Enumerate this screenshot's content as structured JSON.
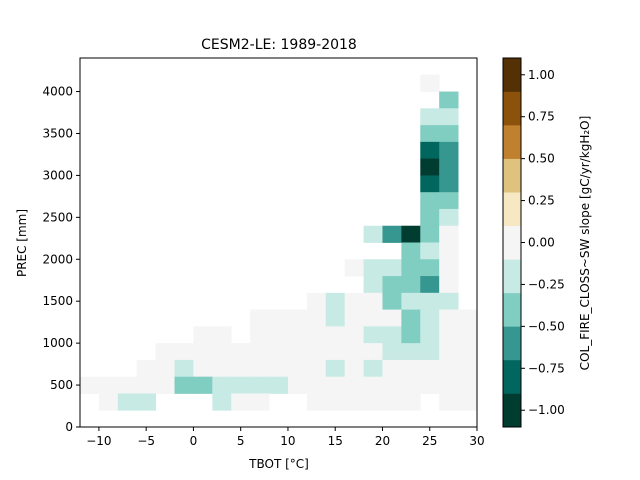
{
  "chart_data": {
    "type": "heatmap",
    "title": "CESM2-LE: 1989-2018",
    "xlabel": "TBOT [°C]",
    "ylabel": "PREC [mm]",
    "xlim": [
      -12,
      30
    ],
    "ylim": [
      0,
      4400
    ],
    "x_ticks": [
      -10,
      -5,
      0,
      5,
      10,
      15,
      20,
      25,
      30
    ],
    "y_ticks": [
      0,
      500,
      1000,
      1500,
      2000,
      2500,
      3000,
      3500,
      4000
    ],
    "bin_width_x": 2,
    "bin_width_y": 200,
    "colorbar": {
      "label": "COL_FIRE_CLOSS~SW slope [gC/yr/kgH₂O]",
      "range": [
        -1.0,
        1.0
      ],
      "ticks": [
        "-1.00",
        "-0.75",
        "-0.50",
        "-0.25",
        "0.00",
        "0.25",
        "0.50",
        "0.75",
        "1.00"
      ],
      "colors": [
        "#003c30",
        "#01665e",
        "#35978f",
        "#80cdc1",
        "#c7eae5",
        "#f5f5f5",
        "#f6e8c3",
        "#dfc27d",
        "#bf812d",
        "#8c510a",
        "#543005"
      ]
    },
    "cells": [
      {
        "x": 24,
        "y": 4000,
        "v": 0.0
      },
      {
        "x": 26,
        "y": 3800,
        "v": -0.35
      },
      {
        "x": 24,
        "y": 3600,
        "v": -0.2
      },
      {
        "x": 26,
        "y": 3600,
        "v": -0.2
      },
      {
        "x": 24,
        "y": 3400,
        "v": -0.35
      },
      {
        "x": 26,
        "y": 3400,
        "v": -0.35
      },
      {
        "x": 24,
        "y": 3200,
        "v": -0.7
      },
      {
        "x": 26,
        "y": 3200,
        "v": -0.5
      },
      {
        "x": 24,
        "y": 3000,
        "v": -0.95
      },
      {
        "x": 26,
        "y": 3000,
        "v": -0.5
      },
      {
        "x": 24,
        "y": 2800,
        "v": -0.7
      },
      {
        "x": 26,
        "y": 2800,
        "v": -0.5
      },
      {
        "x": 24,
        "y": 2600,
        "v": -0.35
      },
      {
        "x": 26,
        "y": 2600,
        "v": -0.35
      },
      {
        "x": 24,
        "y": 2400,
        "v": -0.35
      },
      {
        "x": 26,
        "y": 2400,
        "v": -0.2
      },
      {
        "x": 18,
        "y": 2200,
        "v": -0.2
      },
      {
        "x": 20,
        "y": 2200,
        "v": -0.5
      },
      {
        "x": 22,
        "y": 2200,
        "v": -0.95
      },
      {
        "x": 24,
        "y": 2200,
        "v": -0.35
      },
      {
        "x": 26,
        "y": 2200,
        "v": 0.0
      },
      {
        "x": 22,
        "y": 2000,
        "v": -0.35
      },
      {
        "x": 24,
        "y": 2000,
        "v": -0.2
      },
      {
        "x": 26,
        "y": 2000,
        "v": 0.0
      },
      {
        "x": 16,
        "y": 1800,
        "v": 0.0
      },
      {
        "x": 18,
        "y": 1800,
        "v": -0.2
      },
      {
        "x": 20,
        "y": 1800,
        "v": -0.2
      },
      {
        "x": 22,
        "y": 1800,
        "v": -0.35
      },
      {
        "x": 24,
        "y": 1800,
        "v": -0.35
      },
      {
        "x": 26,
        "y": 1800,
        "v": 0.0
      },
      {
        "x": 18,
        "y": 1600,
        "v": -0.2
      },
      {
        "x": 20,
        "y": 1600,
        "v": -0.35
      },
      {
        "x": 22,
        "y": 1600,
        "v": -0.35
      },
      {
        "x": 24,
        "y": 1600,
        "v": -0.5
      },
      {
        "x": 26,
        "y": 1600,
        "v": 0.0
      },
      {
        "x": 12,
        "y": 1400,
        "v": 0.0
      },
      {
        "x": 14,
        "y": 1400,
        "v": -0.2
      },
      {
        "x": 16,
        "y": 1400,
        "v": 0.0
      },
      {
        "x": 18,
        "y": 1400,
        "v": 0.0
      },
      {
        "x": 20,
        "y": 1400,
        "v": -0.35
      },
      {
        "x": 22,
        "y": 1400,
        "v": -0.2
      },
      {
        "x": 24,
        "y": 1400,
        "v": -0.2
      },
      {
        "x": 26,
        "y": 1400,
        "v": -0.2
      },
      {
        "x": 6,
        "y": 1200,
        "v": 0.0
      },
      {
        "x": 8,
        "y": 1200,
        "v": 0.0
      },
      {
        "x": 10,
        "y": 1200,
        "v": 0.0
      },
      {
        "x": 12,
        "y": 1200,
        "v": 0.0
      },
      {
        "x": 14,
        "y": 1200,
        "v": -0.2
      },
      {
        "x": 16,
        "y": 1200,
        "v": 0.0
      },
      {
        "x": 18,
        "y": 1200,
        "v": 0.0
      },
      {
        "x": 20,
        "y": 1200,
        "v": 0.0
      },
      {
        "x": 22,
        "y": 1200,
        "v": -0.35
      },
      {
        "x": 24,
        "y": 1200,
        "v": -0.2
      },
      {
        "x": 26,
        "y": 1200,
        "v": 0.0
      },
      {
        "x": 28,
        "y": 1200,
        "v": 0.0
      },
      {
        "x": 0,
        "y": 1000,
        "v": 0.0
      },
      {
        "x": 2,
        "y": 1000,
        "v": 0.0
      },
      {
        "x": 6,
        "y": 1000,
        "v": 0.0
      },
      {
        "x": 8,
        "y": 1000,
        "v": 0.0
      },
      {
        "x": 10,
        "y": 1000,
        "v": 0.0
      },
      {
        "x": 12,
        "y": 1000,
        "v": 0.0
      },
      {
        "x": 14,
        "y": 1000,
        "v": 0.0
      },
      {
        "x": 16,
        "y": 1000,
        "v": 0.0
      },
      {
        "x": 18,
        "y": 1000,
        "v": -0.2
      },
      {
        "x": 20,
        "y": 1000,
        "v": -0.2
      },
      {
        "x": 22,
        "y": 1000,
        "v": -0.35
      },
      {
        "x": 24,
        "y": 1000,
        "v": -0.2
      },
      {
        "x": 26,
        "y": 1000,
        "v": 0.0
      },
      {
        "x": 28,
        "y": 1000,
        "v": 0.0
      },
      {
        "x": -4,
        "y": 800,
        "v": 0.0
      },
      {
        "x": -2,
        "y": 800,
        "v": 0.0
      },
      {
        "x": 0,
        "y": 800,
        "v": 0.0
      },
      {
        "x": 2,
        "y": 800,
        "v": 0.0
      },
      {
        "x": 4,
        "y": 800,
        "v": 0.0
      },
      {
        "x": 6,
        "y": 800,
        "v": 0.0
      },
      {
        "x": 8,
        "y": 800,
        "v": 0.0
      },
      {
        "x": 10,
        "y": 800,
        "v": 0.0
      },
      {
        "x": 12,
        "y": 800,
        "v": 0.0
      },
      {
        "x": 14,
        "y": 800,
        "v": 0.0
      },
      {
        "x": 16,
        "y": 800,
        "v": 0.0
      },
      {
        "x": 18,
        "y": 800,
        "v": 0.0
      },
      {
        "x": 20,
        "y": 800,
        "v": -0.2
      },
      {
        "x": 22,
        "y": 800,
        "v": -0.2
      },
      {
        "x": 24,
        "y": 800,
        "v": -0.2
      },
      {
        "x": 26,
        "y": 800,
        "v": 0.0
      },
      {
        "x": 28,
        "y": 800,
        "v": 0.0
      },
      {
        "x": -6,
        "y": 600,
        "v": 0.0
      },
      {
        "x": -4,
        "y": 600,
        "v": 0.0
      },
      {
        "x": -2,
        "y": 600,
        "v": -0.2
      },
      {
        "x": 0,
        "y": 600,
        "v": 0.0
      },
      {
        "x": 2,
        "y": 600,
        "v": 0.0
      },
      {
        "x": 4,
        "y": 600,
        "v": 0.0
      },
      {
        "x": 6,
        "y": 600,
        "v": 0.0
      },
      {
        "x": 8,
        "y": 600,
        "v": 0.0
      },
      {
        "x": 10,
        "y": 600,
        "v": 0.0
      },
      {
        "x": 12,
        "y": 600,
        "v": 0.0
      },
      {
        "x": 14,
        "y": 600,
        "v": -0.2
      },
      {
        "x": 16,
        "y": 600,
        "v": 0.0
      },
      {
        "x": 18,
        "y": 600,
        "v": -0.2
      },
      {
        "x": 20,
        "y": 600,
        "v": 0.0
      },
      {
        "x": 22,
        "y": 600,
        "v": 0.0
      },
      {
        "x": 24,
        "y": 600,
        "v": 0.0
      },
      {
        "x": 26,
        "y": 600,
        "v": 0.0
      },
      {
        "x": 28,
        "y": 600,
        "v": 0.0
      },
      {
        "x": -12,
        "y": 400,
        "v": 0.0
      },
      {
        "x": -10,
        "y": 400,
        "v": 0.0
      },
      {
        "x": -8,
        "y": 400,
        "v": 0.0
      },
      {
        "x": -6,
        "y": 400,
        "v": 0.0
      },
      {
        "x": -4,
        "y": 400,
        "v": 0.0
      },
      {
        "x": -2,
        "y": 400,
        "v": -0.35
      },
      {
        "x": 0,
        "y": 400,
        "v": -0.35
      },
      {
        "x": 2,
        "y": 400,
        "v": -0.2
      },
      {
        "x": 4,
        "y": 400,
        "v": -0.2
      },
      {
        "x": 6,
        "y": 400,
        "v": -0.2
      },
      {
        "x": 8,
        "y": 400,
        "v": -0.2
      },
      {
        "x": 10,
        "y": 400,
        "v": 0.0
      },
      {
        "x": 12,
        "y": 400,
        "v": 0.0
      },
      {
        "x": 14,
        "y": 400,
        "v": 0.0
      },
      {
        "x": 16,
        "y": 400,
        "v": 0.0
      },
      {
        "x": 18,
        "y": 400,
        "v": 0.0
      },
      {
        "x": 20,
        "y": 400,
        "v": 0.0
      },
      {
        "x": 22,
        "y": 400,
        "v": 0.0
      },
      {
        "x": 24,
        "y": 400,
        "v": 0.0
      },
      {
        "x": 26,
        "y": 400,
        "v": 0.0
      },
      {
        "x": 28,
        "y": 400,
        "v": 0.0
      },
      {
        "x": -10,
        "y": 200,
        "v": 0.0
      },
      {
        "x": -8,
        "y": 200,
        "v": -0.2
      },
      {
        "x": -6,
        "y": 200,
        "v": -0.2
      },
      {
        "x": 2,
        "y": 200,
        "v": -0.2
      },
      {
        "x": 4,
        "y": 200,
        "v": 0.0
      },
      {
        "x": 6,
        "y": 200,
        "v": 0.0
      },
      {
        "x": 12,
        "y": 200,
        "v": 0.0
      },
      {
        "x": 14,
        "y": 200,
        "v": 0.0
      },
      {
        "x": 16,
        "y": 200,
        "v": 0.0
      },
      {
        "x": 18,
        "y": 200,
        "v": 0.0
      },
      {
        "x": 20,
        "y": 200,
        "v": 0.0
      },
      {
        "x": 22,
        "y": 200,
        "v": 0.0
      },
      {
        "x": 26,
        "y": 200,
        "v": 0.0
      },
      {
        "x": 28,
        "y": 200,
        "v": 0.0
      }
    ]
  }
}
